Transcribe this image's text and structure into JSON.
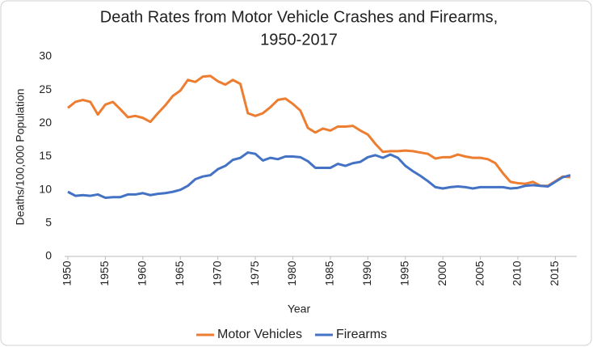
{
  "chart_data": {
    "type": "line",
    "title": [
      "Death Rates from Motor Vehicle Crashes and Firearms,",
      "1950-2017"
    ],
    "x_label": "Year",
    "y_label": "Deaths/100,000 Population",
    "x": [
      1950,
      1951,
      1952,
      1953,
      1954,
      1955,
      1956,
      1957,
      1958,
      1959,
      1960,
      1961,
      1962,
      1963,
      1964,
      1965,
      1966,
      1967,
      1968,
      1969,
      1970,
      1971,
      1972,
      1973,
      1974,
      1975,
      1976,
      1977,
      1978,
      1979,
      1980,
      1981,
      1982,
      1983,
      1984,
      1985,
      1986,
      1987,
      1988,
      1989,
      1990,
      1991,
      1992,
      1993,
      1994,
      1995,
      1996,
      1997,
      1998,
      1999,
      2000,
      2001,
      2002,
      2003,
      2004,
      2005,
      2006,
      2007,
      2008,
      2009,
      2010,
      2011,
      2012,
      2013,
      2014,
      2015,
      2016,
      2017
    ],
    "series": [
      {
        "name": "Motor Vehicles",
        "color": "#ed7d31",
        "values": [
          22.3,
          23.2,
          23.5,
          23.2,
          21.3,
          22.8,
          23.2,
          22.1,
          20.9,
          21.1,
          20.8,
          20.2,
          21.5,
          22.7,
          24.1,
          24.9,
          26.5,
          26.2,
          27.0,
          27.1,
          26.3,
          25.8,
          26.5,
          25.9,
          21.5,
          21.1,
          21.5,
          22.4,
          23.5,
          23.7,
          22.9,
          21.9,
          19.3,
          18.6,
          19.2,
          18.9,
          19.5,
          19.5,
          19.6,
          18.9,
          18.3,
          16.9,
          15.7,
          15.8,
          15.8,
          15.9,
          15.8,
          15.6,
          15.4,
          14.7,
          14.9,
          14.9,
          15.3,
          15.0,
          14.8,
          14.8,
          14.6,
          14.0,
          12.5,
          11.2,
          11.0,
          10.9,
          11.2,
          10.6,
          10.6,
          11.3,
          12.0,
          11.9
        ]
      },
      {
        "name": "Firearms",
        "color": "#4472c4",
        "values": [
          9.7,
          9.1,
          9.2,
          9.1,
          9.3,
          8.8,
          8.9,
          8.9,
          9.3,
          9.3,
          9.5,
          9.2,
          9.4,
          9.5,
          9.7,
          10.0,
          10.6,
          11.6,
          12.0,
          12.2,
          13.1,
          13.6,
          14.5,
          14.8,
          15.6,
          15.4,
          14.4,
          14.8,
          14.6,
          15.0,
          15.0,
          14.9,
          14.3,
          13.3,
          13.3,
          13.3,
          13.9,
          13.6,
          14.0,
          14.2,
          14.9,
          15.2,
          14.8,
          15.3,
          14.8,
          13.6,
          12.8,
          12.1,
          11.3,
          10.4,
          10.2,
          10.4,
          10.5,
          10.4,
          10.2,
          10.4,
          10.4,
          10.4,
          10.4,
          10.2,
          10.3,
          10.6,
          10.7,
          10.6,
          10.5,
          11.2,
          11.9,
          12.2
        ]
      }
    ],
    "xlim": [
      1950,
      2017
    ],
    "xticks": [
      1950,
      1955,
      1960,
      1965,
      1970,
      1975,
      1980,
      1985,
      1990,
      1995,
      2000,
      2005,
      2010,
      2015
    ],
    "ylim": [
      0,
      30
    ],
    "yticks": [
      0,
      5,
      10,
      15,
      20,
      25,
      30
    ],
    "grid": false,
    "legend": "bottom"
  }
}
